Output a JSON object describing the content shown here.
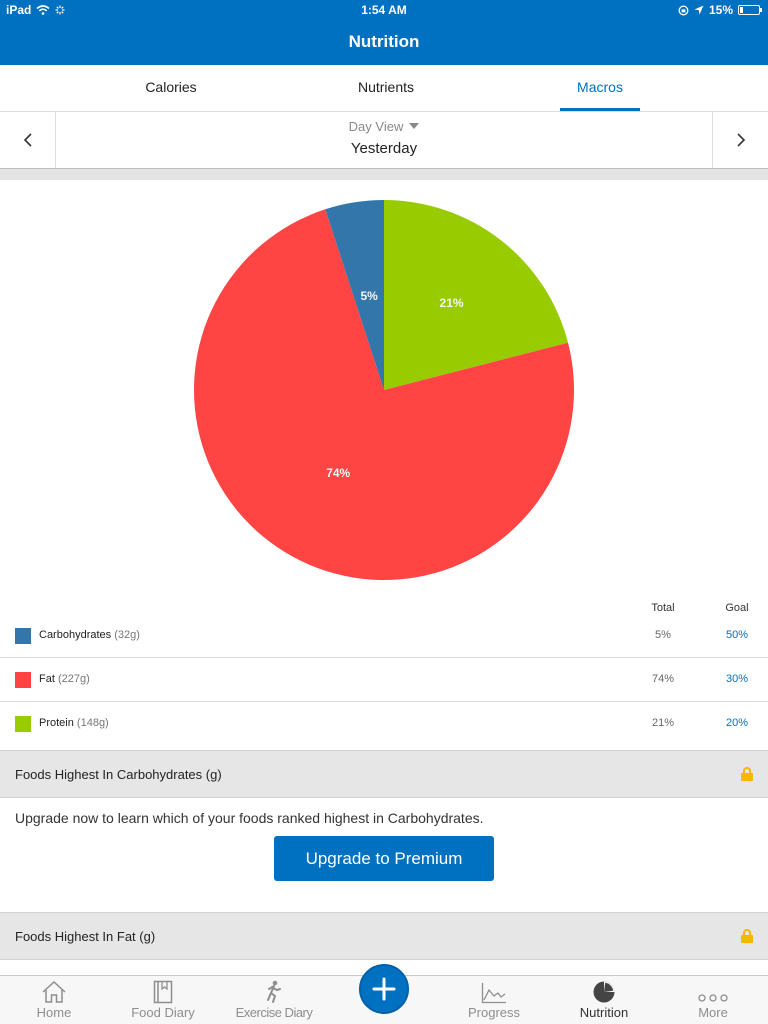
{
  "status_bar": {
    "device": "iPad",
    "time": "1:54 AM",
    "battery": "15%"
  },
  "nav": {
    "title": "Nutrition"
  },
  "tabs": [
    {
      "label": "Calories",
      "active": false
    },
    {
      "label": "Nutrients",
      "active": false
    },
    {
      "label": "Macros",
      "active": true
    }
  ],
  "day_selector": {
    "view_label": "Day View",
    "date_label": "Yesterday"
  },
  "chart_data": {
    "type": "pie",
    "slices": [
      {
        "name": "Carbohydrates",
        "value": 5,
        "label": "5%",
        "color": "#3377aa"
      },
      {
        "name": "Protein",
        "value": 21,
        "label": "21%",
        "color": "#99cc00"
      },
      {
        "name": "Fat",
        "value": 74,
        "label": "74%",
        "color": "#ff4444"
      }
    ]
  },
  "legend": {
    "header_total": "Total",
    "header_goal": "Goal",
    "rows": [
      {
        "name": "Carbohydrates",
        "grams": "(32g)",
        "total": "5%",
        "goal": "50%",
        "color": "#3377aa"
      },
      {
        "name": "Fat",
        "grams": "(227g)",
        "total": "74%",
        "goal": "30%",
        "color": "#ff4444"
      },
      {
        "name": "Protein",
        "grams": "(148g)",
        "total": "21%",
        "goal": "20%",
        "color": "#99cc00"
      }
    ]
  },
  "sections": {
    "carbs_title": "Foods Highest In Carbohydrates (g)",
    "fat_title": "Foods Highest In Fat (g)"
  },
  "upgrade": {
    "text": "Upgrade now to learn which of your foods ranked highest in Carbohydrates.",
    "button_label": "Upgrade to Premium"
  },
  "tab_bar": [
    {
      "label": "Home",
      "icon": "home-icon"
    },
    {
      "label": "Food Diary",
      "icon": "book-icon"
    },
    {
      "label": "Exercise Diary",
      "icon": "runner-icon"
    },
    {
      "label": "Progress",
      "icon": "line-chart-icon"
    },
    {
      "label": "Nutrition",
      "icon": "pie-chart-icon",
      "active": true
    },
    {
      "label": "More",
      "icon": "ellipsis-icon"
    }
  ]
}
